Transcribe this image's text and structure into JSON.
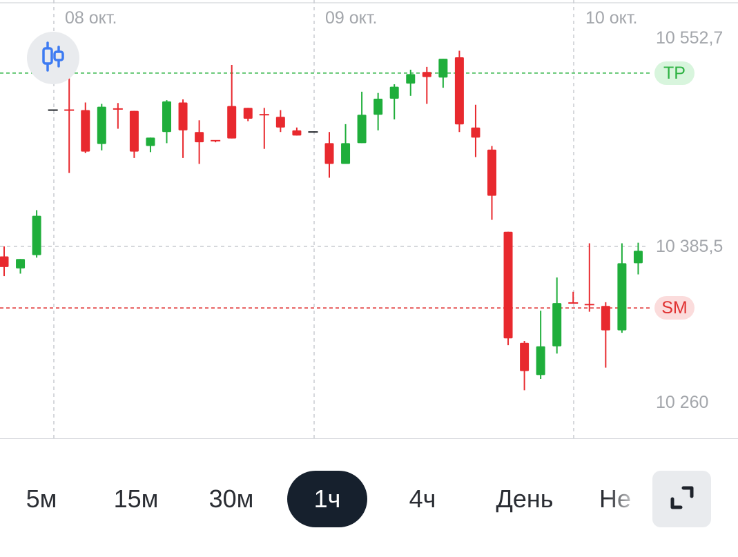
{
  "chart_data": {
    "type": "candlestick",
    "x_labels": [
      "08 окт.",
      "09 окт.",
      "10 окт."
    ],
    "y_ticks": [
      10552.7,
      10385.5,
      10260
    ],
    "y_tick_labels": [
      "10 552,7",
      "10 385,5",
      "10 260"
    ],
    "grid": "dashed",
    "levels": [
      {
        "name": "TP",
        "value": 10525,
        "color": "#2fb344",
        "badge_bg": "#d8f5dd"
      },
      {
        "name": "SM",
        "value": 10336,
        "color": "#e03131",
        "badge_bg": "#fbdcdc"
      }
    ],
    "candles": [
      {
        "o": 10377.5,
        "h": 10385.5,
        "l": 10361.6,
        "c": 10368.9
      },
      {
        "o": 10367.8,
        "h": 10375.4,
        "l": 10363.6,
        "c": 10375.4
      },
      {
        "o": 10378.5,
        "h": 10414.7,
        "l": 10376.5,
        "c": 10410.2
      },
      {
        "o": 10495.2,
        "h": 10495.2,
        "l": 10495.2,
        "c": 10495.2
      },
      {
        "o": 10495.2,
        "h": 10520.9,
        "l": 10444.6,
        "c": 10495.2
      },
      {
        "o": 10495.2,
        "h": 10501.3,
        "l": 10460.6,
        "c": 10461.8
      },
      {
        "o": 10467.9,
        "h": 10500.2,
        "l": 10462.8,
        "c": 10497.9
      },
      {
        "o": 10496.1,
        "h": 10500.9,
        "l": 10480.2,
        "c": 10496.1
      },
      {
        "o": 10494.6,
        "h": 10494.6,
        "l": 10456.7,
        "c": 10461.8
      },
      {
        "o": 10466.3,
        "h": 10473.1,
        "l": 10461.4,
        "c": 10473.1
      },
      {
        "o": 10477.6,
        "h": 10503.2,
        "l": 10468.6,
        "c": 10502.2
      },
      {
        "o": 10501.3,
        "h": 10503.8,
        "l": 10456.7,
        "c": 10478.9
      },
      {
        "o": 10477.6,
        "h": 10487.0,
        "l": 10451.9,
        "c": 10469.3
      },
      {
        "o": 10470.6,
        "h": 10470.6,
        "l": 10469.3,
        "c": 10470.6
      },
      {
        "o": 10498.5,
        "h": 10531.6,
        "l": 10472.4,
        "c": 10472.4
      },
      {
        "o": 10497.0,
        "h": 10497.0,
        "l": 10486.3,
        "c": 10488.3
      },
      {
        "o": 10491.5,
        "h": 10497.0,
        "l": 10464.0,
        "c": 10491.5
      },
      {
        "o": 10489.8,
        "h": 10495.2,
        "l": 10477.6,
        "c": 10481.2
      },
      {
        "o": 10478.9,
        "h": 10481.2,
        "l": 10474.7,
        "c": 10474.7
      },
      {
        "o": 10477.6,
        "h": 10477.6,
        "l": 10477.6,
        "c": 10477.6
      },
      {
        "o": 10468.6,
        "h": 10477.6,
        "l": 10440.8,
        "c": 10451.9
      },
      {
        "o": 10451.9,
        "h": 10483.9,
        "l": 10451.9,
        "c": 10468.6
      },
      {
        "o": 10468.6,
        "h": 10510.0,
        "l": 10468.6,
        "c": 10491.5
      },
      {
        "o": 10491.5,
        "h": 10509.0,
        "l": 10478.9,
        "c": 10504.4
      },
      {
        "o": 10504.4,
        "h": 10516.0,
        "l": 10487.7,
        "c": 10514.0
      },
      {
        "o": 10516.5,
        "h": 10527.7,
        "l": 10506.7,
        "c": 10524.2
      },
      {
        "o": 10525.9,
        "h": 10530.0,
        "l": 10500.2,
        "c": 10521.8
      },
      {
        "o": 10521.4,
        "h": 10536.5,
        "l": 10513.2,
        "c": 10536.5
      },
      {
        "o": 10537.7,
        "h": 10543.0,
        "l": 10477.6,
        "c": 10483.7
      },
      {
        "o": 10481.2,
        "h": 10499.5,
        "l": 10457.4,
        "c": 10473.1
      },
      {
        "o": 10463.4,
        "h": 10466.3,
        "l": 10406.9,
        "c": 10426.3
      },
      {
        "o": 10397.3,
        "h": 10397.3,
        "l": 10306.0,
        "c": 10311.5
      },
      {
        "o": 10307.9,
        "h": 10309.4,
        "l": 10269.8,
        "c": 10285.2
      },
      {
        "o": 10282.0,
        "h": 10333.8,
        "l": 10278.9,
        "c": 10305.1
      },
      {
        "o": 10305.1,
        "h": 10360.5,
        "l": 10299.3,
        "c": 10339.9
      },
      {
        "o": 10340.0,
        "h": 10349.0,
        "l": 10340.0,
        "c": 10340.0
      },
      {
        "o": 10338.7,
        "h": 10388.0,
        "l": 10333.0,
        "c": 10338.7
      },
      {
        "o": 10337.6,
        "h": 10340.6,
        "l": 10288.0,
        "c": 10318.0
      },
      {
        "o": 10318.0,
        "h": 10388.0,
        "l": 10316.0,
        "c": 10372.0
      },
      {
        "o": 10372.0,
        "h": 10388.5,
        "l": 10363.0,
        "c": 10382.0
      }
    ]
  },
  "timeframes": [
    {
      "label": "5м",
      "active": false
    },
    {
      "label": "15м",
      "active": false
    },
    {
      "label": "30м",
      "active": false
    },
    {
      "label": "1ч",
      "active": true
    },
    {
      "label": "4ч",
      "active": false
    },
    {
      "label": "День",
      "active": false
    },
    {
      "label": "Не",
      "active": false
    }
  ],
  "icons": {
    "indicator": "candlestick-indicator-icon",
    "expand": "expand-icon"
  },
  "colors": {
    "up": "#1fae3b",
    "down": "#e8292e",
    "grid": "#c9ccd1",
    "accent": "#3d7bf2",
    "active_bg": "#16202d"
  }
}
